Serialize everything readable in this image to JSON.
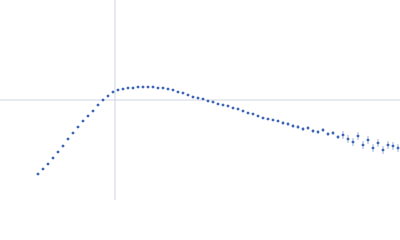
{
  "chart_data": {
    "type": "scatter",
    "color": "#3e66b8",
    "xlim": [
      0,
      400
    ],
    "ylim": [
      0,
      200
    ],
    "x_reference": 115,
    "y_reference": 100,
    "x": [
      38,
      43,
      48,
      53,
      58,
      63,
      68,
      73,
      78,
      83,
      88,
      93,
      98,
      103,
      108,
      113,
      118,
      123,
      128,
      133,
      138,
      143,
      148,
      153,
      158,
      163,
      168,
      173,
      178,
      183,
      188,
      193,
      198,
      203,
      208,
      213,
      218,
      223,
      228,
      233,
      238,
      243,
      248,
      253,
      258,
      263,
      268,
      273,
      278,
      283,
      288,
      293,
      298,
      303,
      308,
      313,
      318,
      323,
      328,
      333,
      338,
      343,
      348,
      353,
      358,
      363,
      368,
      373,
      378,
      383,
      388,
      393,
      398
    ],
    "values": [
      26,
      31,
      36,
      42,
      48,
      54,
      61,
      67,
      73,
      79,
      84,
      89,
      95,
      100,
      104,
      108,
      110,
      111,
      112,
      112,
      113,
      113,
      113,
      113,
      112,
      112,
      111,
      110,
      108,
      107,
      105,
      103,
      102,
      101,
      99,
      98,
      96,
      95,
      94,
      92,
      91,
      89,
      87,
      86,
      84,
      82,
      81,
      80,
      79,
      77,
      76,
      74,
      73,
      71,
      72,
      69,
      68,
      70,
      66,
      67,
      63,
      65,
      61,
      58,
      64,
      55,
      60,
      52,
      57,
      50,
      55,
      54,
      52
    ],
    "errors": [
      1,
      1,
      1,
      1,
      1,
      1,
      1,
      1,
      1,
      1,
      1,
      1,
      1,
      1,
      1,
      1,
      1,
      1,
      1,
      1,
      1,
      1,
      1,
      1,
      1,
      1,
      1,
      1,
      1,
      1,
      1,
      1,
      1,
      1,
      1,
      1,
      1,
      1,
      1,
      1,
      1,
      1,
      1,
      1,
      1,
      1,
      1,
      1,
      1,
      2,
      2,
      2,
      2,
      2,
      2,
      2,
      2,
      2,
      2,
      2,
      2,
      4,
      4,
      4,
      4,
      4,
      4,
      4,
      4,
      4,
      4,
      4,
      4
    ]
  }
}
